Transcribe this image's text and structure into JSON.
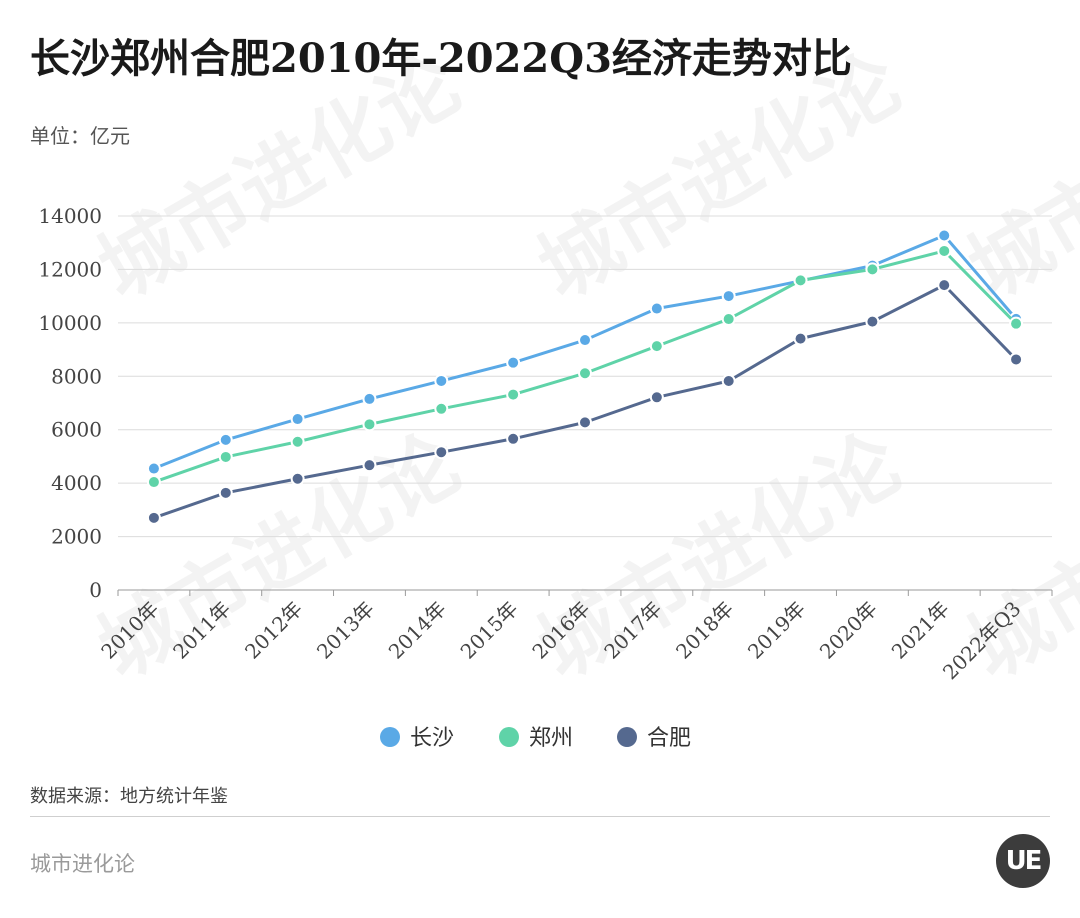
{
  "title": "长沙郑州合肥2010年-2022Q3经济走势对比",
  "unit_label": "单位：亿元",
  "source_label": "数据来源：地方统计年鉴",
  "brand_label": "城市进化论",
  "logo_text": "UE",
  "chart_data": {
    "type": "line",
    "title": "长沙郑州合肥2010年-2022Q3经济走势对比",
    "xlabel": "",
    "ylabel": "单位：亿元",
    "categories": [
      "2010年",
      "2011年",
      "2012年",
      "2013年",
      "2014年",
      "2015年",
      "2016年",
      "2017年",
      "2018年",
      "2019年",
      "2020年",
      "2021年",
      "2022年Q3"
    ],
    "ylim": [
      0,
      14000
    ],
    "yticks": [
      "0",
      "2000",
      "4000",
      "6000",
      "8000",
      "10000",
      "12000",
      "14000"
    ],
    "grid": true,
    "legend_position": "bottom",
    "series": [
      {
        "name": "长沙",
        "color": "#5aa9e6",
        "values": [
          4547,
          5619,
          6400,
          7153,
          7825,
          8510,
          9356,
          10536,
          11003,
          11574,
          12143,
          13271,
          10150
        ]
      },
      {
        "name": "郑州",
        "color": "#5fd3a8",
        "values": [
          4041,
          4980,
          5550,
          6202,
          6783,
          7315,
          8114,
          9130,
          10143,
          11590,
          12003,
          12691,
          9970
        ]
      },
      {
        "name": "合肥",
        "color": "#55698f",
        "values": [
          2702,
          3637,
          4164,
          4673,
          5158,
          5660,
          6274,
          7213,
          7823,
          9409,
          10046,
          11413,
          8630
        ]
      }
    ]
  }
}
